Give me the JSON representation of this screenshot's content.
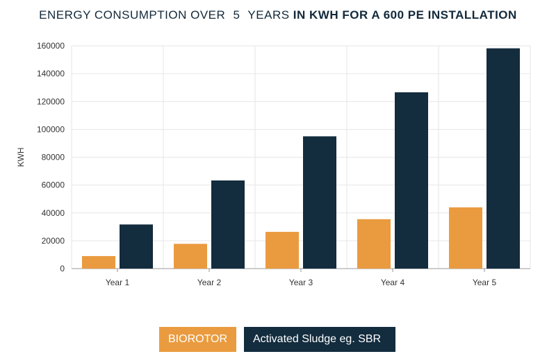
{
  "title": {
    "prefix": "ENERGY CONSUMPTION OVER",
    "number": "5",
    "years_word": "YEARS",
    "bold_part": "IN KWH FOR A 600 PE INSTALLATION"
  },
  "colors": {
    "biorotor": "#ea9b3f",
    "sludge": "#132c3e",
    "grid": "#e6e6e6",
    "axis": "#9a9a9a"
  },
  "chart_data": {
    "type": "bar",
    "title": "ENERGY CONSUMPTION OVER 5 YEARS IN KWH FOR A 600 PE INSTALLATION",
    "xlabel": "",
    "ylabel": "KWH",
    "ylim": [
      0,
      160000
    ],
    "yticks": [
      "0",
      "20000",
      "40000",
      "60000",
      "80000",
      "100000",
      "120000",
      "140000",
      "160000"
    ],
    "categories": [
      "Year 1",
      "Year 2",
      "Year 3",
      "Year 4",
      "Year 5"
    ],
    "series": [
      {
        "name": "BIOROTOR",
        "values": [
          9000,
          17800,
          26400,
          35500,
          44000
        ]
      },
      {
        "name": "Activated Sludge eg. SBR",
        "values": [
          31700,
          63300,
          95000,
          126600,
          158200
        ]
      }
    ],
    "grid": true,
    "legend": "bottom-center"
  }
}
